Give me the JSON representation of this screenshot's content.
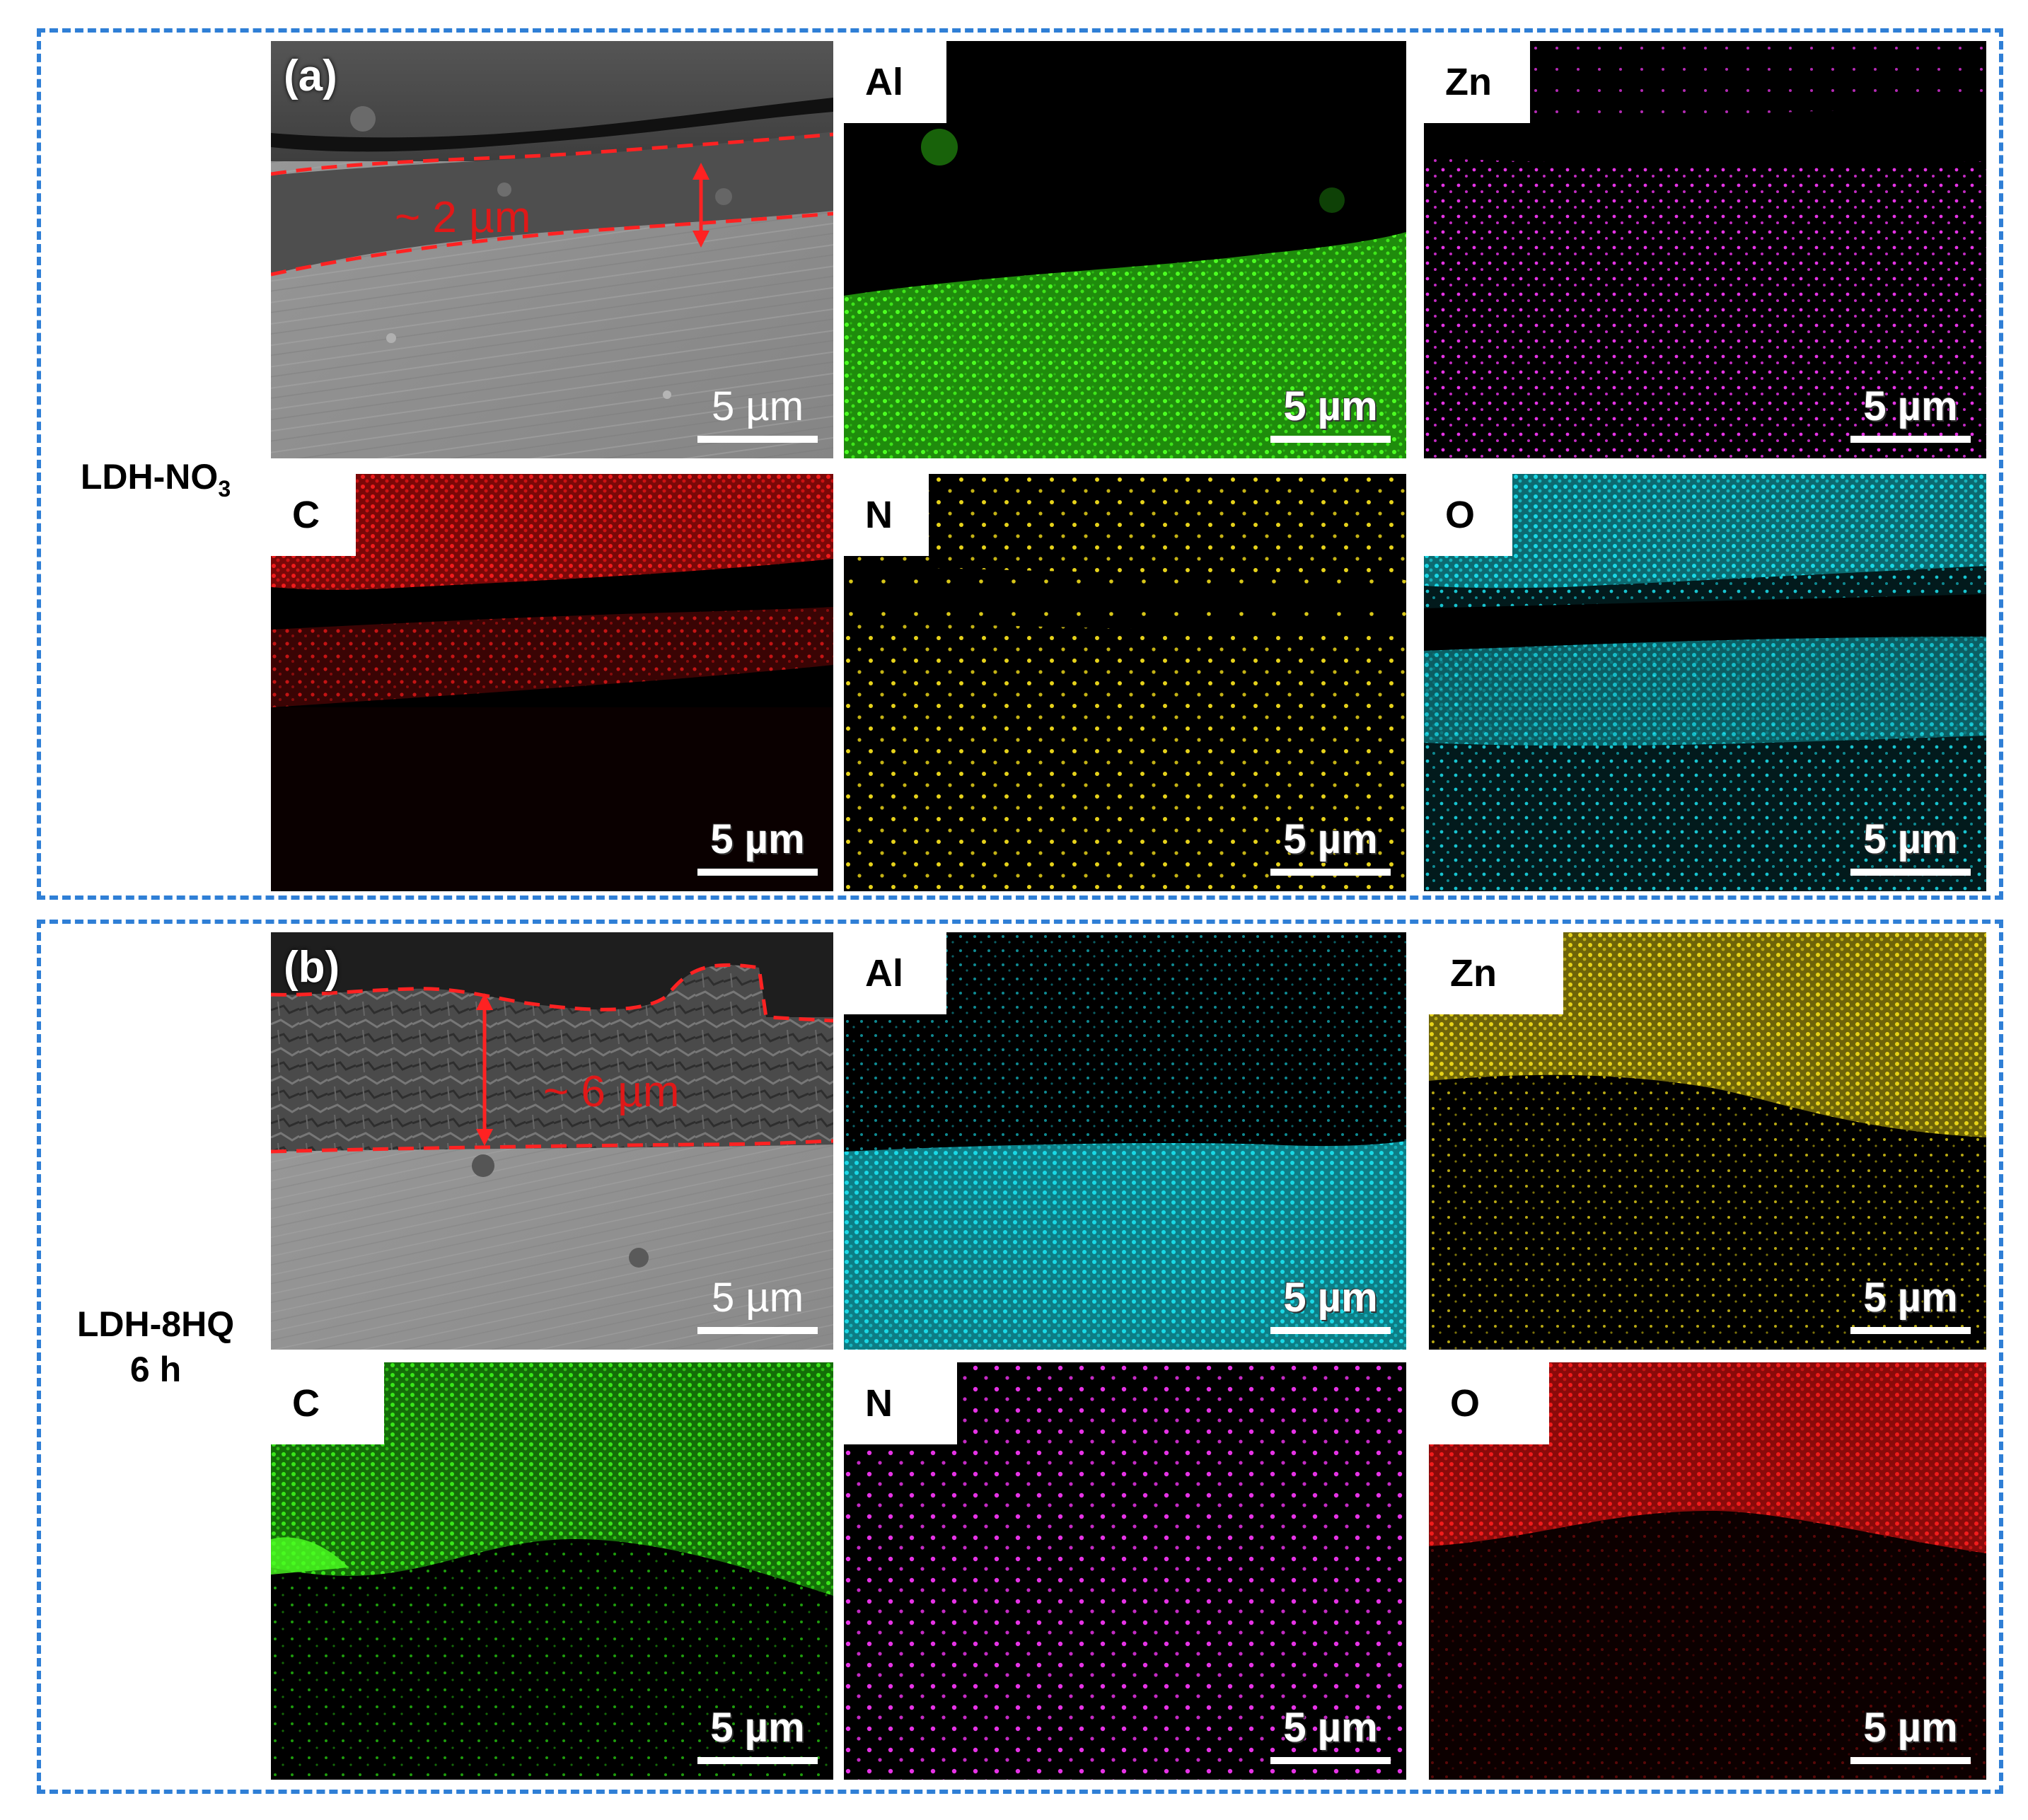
{
  "groups": [
    {
      "label_main": "LDH-NO",
      "label_sub": "3",
      "label_line2": "",
      "sem": {
        "letter": "(a)",
        "thickness": "~ 2 µm",
        "scale": "5 µm"
      },
      "maps": [
        {
          "element": "Al",
          "color": "#39e61a",
          "scale": "5 µm"
        },
        {
          "element": "Zn",
          "color": "#e633e6",
          "scale": "5 µm"
        },
        {
          "element": "C",
          "color": "#f01c1c",
          "scale": "5 µm"
        },
        {
          "element": "N",
          "color": "#e6d21a",
          "scale": "5 µm"
        },
        {
          "element": "O",
          "color": "#1ad9e6",
          "scale": "5 µm"
        }
      ]
    },
    {
      "label_main": "LDH-8HQ",
      "label_sub": "",
      "label_line2": "6 h",
      "sem": {
        "letter": "(b)",
        "thickness": "~ 6 µm",
        "scale": "5 µm"
      },
      "maps": [
        {
          "element": "Al",
          "color": "#1ad9e6",
          "scale": "5 µm"
        },
        {
          "element": "Zn",
          "color": "#e6d21a",
          "scale": "5 µm"
        },
        {
          "element": "C",
          "color": "#39e61a",
          "scale": "5 µm"
        },
        {
          "element": "N",
          "color": "#e633e6",
          "scale": "5 µm"
        },
        {
          "element": "O",
          "color": "#f01c1c",
          "scale": "5 µm"
        }
      ]
    }
  ]
}
